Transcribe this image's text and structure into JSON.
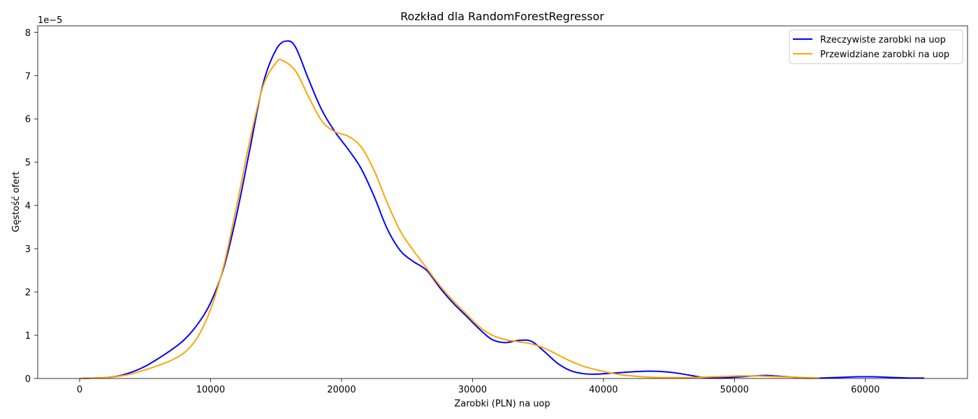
{
  "chart_data": {
    "type": "line",
    "title": "Rozkład dla RandomForestRegressor",
    "xlabel": "Zarobki (PLN) na uop",
    "ylabel": "Gęstość ofert",
    "y_offset_label": "1e−5",
    "xlim": [
      -3200,
      67800
    ],
    "ylim": [
      0,
      8.15
    ],
    "x_ticks": [
      0,
      10000,
      20000,
      30000,
      40000,
      50000,
      60000
    ],
    "y_ticks": [
      0,
      1,
      2,
      3,
      4,
      5,
      6,
      7,
      8
    ],
    "grid": false,
    "legend_position": "top-right",
    "series": [
      {
        "name": "Rzeczywiste zarobki na uop",
        "color": "#0000ff",
        "points": [
          [
            0,
            0.0
          ],
          [
            2000,
            0.02
          ],
          [
            3000,
            0.06
          ],
          [
            4000,
            0.15
          ],
          [
            5000,
            0.28
          ],
          [
            6000,
            0.46
          ],
          [
            7000,
            0.66
          ],
          [
            8000,
            0.9
          ],
          [
            9000,
            1.25
          ],
          [
            10000,
            1.75
          ],
          [
            11000,
            2.55
          ],
          [
            12000,
            3.8
          ],
          [
            13000,
            5.3
          ],
          [
            14000,
            6.8
          ],
          [
            15000,
            7.6
          ],
          [
            15800,
            7.8
          ],
          [
            16500,
            7.65
          ],
          [
            17500,
            6.9
          ],
          [
            18500,
            6.2
          ],
          [
            19500,
            5.7
          ],
          [
            20500,
            5.3
          ],
          [
            21500,
            4.85
          ],
          [
            22500,
            4.2
          ],
          [
            23500,
            3.45
          ],
          [
            24500,
            2.95
          ],
          [
            25500,
            2.7
          ],
          [
            26500,
            2.5
          ],
          [
            27500,
            2.1
          ],
          [
            28500,
            1.75
          ],
          [
            29500,
            1.45
          ],
          [
            30500,
            1.15
          ],
          [
            31500,
            0.9
          ],
          [
            32500,
            0.83
          ],
          [
            33500,
            0.88
          ],
          [
            34500,
            0.86
          ],
          [
            35500,
            0.62
          ],
          [
            36500,
            0.35
          ],
          [
            37500,
            0.18
          ],
          [
            38500,
            0.11
          ],
          [
            39500,
            0.1
          ],
          [
            40500,
            0.12
          ],
          [
            41500,
            0.14
          ],
          [
            42500,
            0.16
          ],
          [
            43500,
            0.17
          ],
          [
            44500,
            0.16
          ],
          [
            45500,
            0.13
          ],
          [
            46500,
            0.08
          ],
          [
            47500,
            0.03
          ],
          [
            48500,
            0.01
          ],
          [
            49500,
            0.02
          ],
          [
            50500,
            0.04
          ],
          [
            51500,
            0.06
          ],
          [
            52500,
            0.07
          ],
          [
            53500,
            0.05
          ],
          [
            54500,
            0.03
          ],
          [
            55500,
            0.01
          ],
          [
            56500,
            0.01
          ],
          [
            57500,
            0.02
          ],
          [
            58500,
            0.03
          ],
          [
            59500,
            0.04
          ],
          [
            60500,
            0.04
          ],
          [
            61500,
            0.03
          ],
          [
            62500,
            0.02
          ],
          [
            63500,
            0.01
          ],
          [
            64500,
            0.01
          ]
        ]
      },
      {
        "name": "Przewidziane zarobki na uop",
        "color": "#ffa500",
        "points": [
          [
            0,
            0.0
          ],
          [
            2000,
            0.02
          ],
          [
            3000,
            0.05
          ],
          [
            4000,
            0.11
          ],
          [
            5000,
            0.2
          ],
          [
            6000,
            0.3
          ],
          [
            7000,
            0.42
          ],
          [
            8000,
            0.6
          ],
          [
            9000,
            0.95
          ],
          [
            10000,
            1.6
          ],
          [
            11000,
            2.6
          ],
          [
            12000,
            4.0
          ],
          [
            13000,
            5.5
          ],
          [
            14000,
            6.75
          ],
          [
            15000,
            7.3
          ],
          [
            15500,
            7.35
          ],
          [
            16500,
            7.1
          ],
          [
            17500,
            6.5
          ],
          [
            18500,
            5.95
          ],
          [
            19500,
            5.7
          ],
          [
            20500,
            5.6
          ],
          [
            21500,
            5.35
          ],
          [
            22500,
            4.8
          ],
          [
            23500,
            4.05
          ],
          [
            24500,
            3.4
          ],
          [
            25500,
            2.95
          ],
          [
            26500,
            2.55
          ],
          [
            27500,
            2.15
          ],
          [
            28500,
            1.8
          ],
          [
            29500,
            1.5
          ],
          [
            30500,
            1.2
          ],
          [
            31500,
            1.0
          ],
          [
            32500,
            0.9
          ],
          [
            33500,
            0.85
          ],
          [
            34500,
            0.8
          ],
          [
            35500,
            0.7
          ],
          [
            36500,
            0.55
          ],
          [
            37500,
            0.4
          ],
          [
            38500,
            0.28
          ],
          [
            39500,
            0.2
          ],
          [
            40500,
            0.13
          ],
          [
            41500,
            0.08
          ],
          [
            42500,
            0.05
          ],
          [
            43500,
            0.03
          ],
          [
            44500,
            0.02
          ],
          [
            45500,
            0.02
          ],
          [
            46500,
            0.02
          ],
          [
            47500,
            0.03
          ],
          [
            48500,
            0.04
          ],
          [
            49500,
            0.05
          ],
          [
            50500,
            0.06
          ],
          [
            51500,
            0.06
          ],
          [
            52500,
            0.05
          ],
          [
            53500,
            0.04
          ],
          [
            54500,
            0.03
          ],
          [
            55500,
            0.02
          ],
          [
            56500,
            0.01
          ]
        ]
      }
    ]
  }
}
